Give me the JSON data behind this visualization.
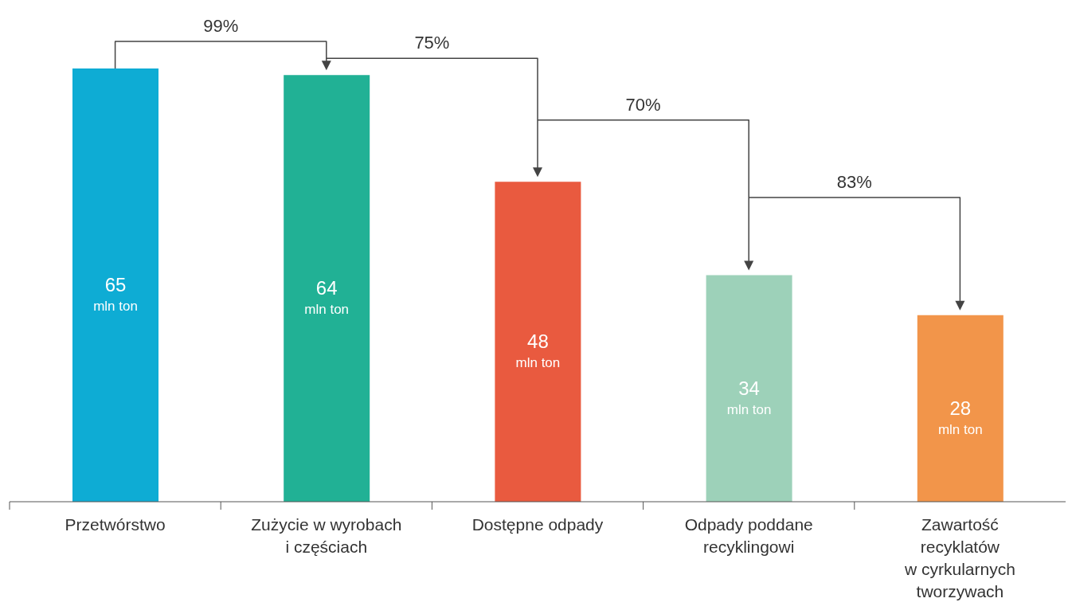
{
  "chart_data": {
    "type": "bar",
    "categories": [
      "Przetwórstwo",
      "Zużycie w wyrobach\ni częściach",
      "Dostępne odpady",
      "Odpady poddane\nrecyklingowi",
      "Zawartość\nrecyklatów\nw cyrkularnych\ntworzywach"
    ],
    "values": [
      65,
      64,
      48,
      34,
      28
    ],
    "colors": [
      "#0eacd4",
      "#21b195",
      "#e95a3f",
      "#9dd1b9",
      "#f2954a"
    ],
    "value_labels": [
      "65\nmln ton",
      "64\nmln ton",
      "48\nmln ton",
      "34\nmln ton",
      "28\nmln ton"
    ],
    "annotations": [
      "99%",
      "75%",
      "70%",
      "83%"
    ],
    "grid": false,
    "legend": false
  }
}
